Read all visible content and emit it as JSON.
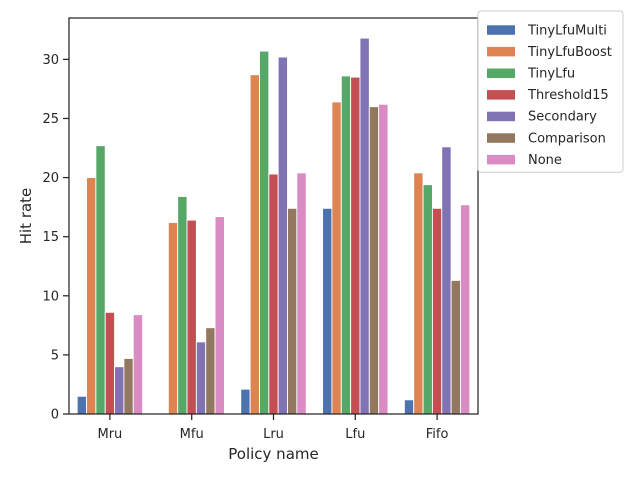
{
  "chart_data": {
    "type": "bar",
    "xlabel": "Policy name",
    "ylabel": "Hit rate",
    "categories": [
      "Mru",
      "Mfu",
      "Lru",
      "Lfu",
      "Fifo"
    ],
    "ylim": [
      0,
      33.5
    ],
    "yticks": [
      0,
      5,
      10,
      15,
      20,
      25,
      30
    ],
    "grid": false,
    "legend_position": "outside-top-right",
    "series": [
      {
        "name": "TinyLfuMulti",
        "color": "#4c72b0",
        "values": [
          1.5,
          0,
          2.1,
          17.4,
          1.2
        ]
      },
      {
        "name": "TinyLfuBoost",
        "color": "#dd8452",
        "values": [
          20.0,
          16.2,
          28.7,
          26.4,
          20.4
        ]
      },
      {
        "name": "TinyLfu",
        "color": "#55a868",
        "values": [
          22.7,
          18.4,
          30.7,
          28.6,
          19.4
        ]
      },
      {
        "name": "Threshold15",
        "color": "#c44e52",
        "values": [
          8.6,
          16.4,
          20.3,
          28.5,
          17.4
        ]
      },
      {
        "name": "Secondary",
        "color": "#8172b3",
        "values": [
          4.0,
          6.1,
          30.2,
          31.8,
          22.6
        ]
      },
      {
        "name": "Comparison",
        "color": "#937860",
        "values": [
          4.7,
          7.3,
          17.4,
          26.0,
          11.3
        ]
      },
      {
        "name": "None",
        "color": "#da8bc3",
        "values": [
          8.4,
          16.7,
          20.4,
          26.2,
          17.7
        ]
      }
    ]
  }
}
